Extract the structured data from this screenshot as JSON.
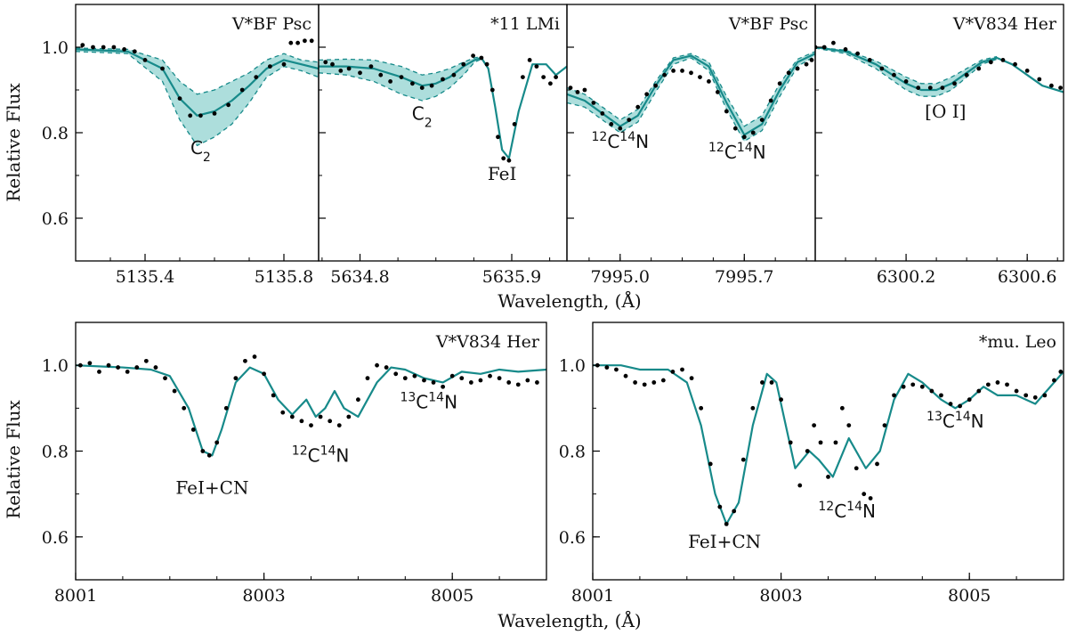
{
  "colors": {
    "model": "#178a8a",
    "band_fill": "#9fd8d6",
    "observed": "#000000"
  },
  "labels": {
    "ylabel": "Relative Flux",
    "xlabel": "Wavelength, (Å)"
  },
  "chart_data": [
    {
      "type": "line",
      "id": "p1",
      "title": "V*BF Psc",
      "xlim": [
        5135.2,
        5135.9
      ],
      "ylim": [
        0.5,
        1.1
      ],
      "xticks": [
        5135.4,
        5135.8
      ],
      "xtick_labels": [
        "5135.4",
        "5135.8"
      ],
      "yticks": [
        0.6,
        0.8,
        1.0
      ],
      "ytick_labels": [
        "0.6",
        "0.8",
        "1.0"
      ],
      "band": true,
      "model_x": [
        5135.2,
        5135.35,
        5135.45,
        5135.5,
        5135.55,
        5135.6,
        5135.65,
        5135.7,
        5135.75,
        5135.8,
        5135.85,
        5135.9
      ],
      "model_y": [
        0.995,
        0.99,
        0.95,
        0.88,
        0.84,
        0.85,
        0.875,
        0.91,
        0.95,
        0.97,
        0.96,
        0.95
      ],
      "band_upper": [
        0.998,
        0.995,
        0.97,
        0.92,
        0.89,
        0.9,
        0.92,
        0.94,
        0.97,
        0.985,
        0.97,
        0.965
      ],
      "band_lower": [
        0.99,
        0.985,
        0.92,
        0.83,
        0.77,
        0.79,
        0.82,
        0.87,
        0.93,
        0.955,
        0.945,
        0.93
      ],
      "obs_x": [
        5135.22,
        5135.25,
        5135.28,
        5135.31,
        5135.34,
        5135.37,
        5135.4,
        5135.45,
        5135.5,
        5135.53,
        5135.56,
        5135.6,
        5135.64,
        5135.68,
        5135.72,
        5135.76,
        5135.8,
        5135.82,
        5135.84,
        5135.86,
        5135.88
      ],
      "obs_y": [
        1.005,
        1.0,
        1.0,
        1.0,
        0.995,
        0.99,
        0.97,
        0.95,
        0.88,
        0.84,
        0.84,
        0.845,
        0.865,
        0.9,
        0.93,
        0.955,
        0.96,
        1.01,
        1.01,
        1.015,
        1.015
      ],
      "annotations": [
        {
          "id": "c2",
          "base": "C",
          "sub": "2",
          "sup_pre": "",
          "after": "",
          "x": 5135.56,
          "y": 0.75,
          "sans": true
        }
      ]
    },
    {
      "type": "line",
      "id": "p2",
      "title": "*11 LMi",
      "xlim": [
        5634.5,
        5636.3
      ],
      "ylim": [
        0.5,
        1.1
      ],
      "xticks": [
        5634.8,
        5635.9
      ],
      "xtick_labels": [
        "5634.8",
        "5635.9"
      ],
      "yticks": [
        0.6,
        0.8,
        1.0
      ],
      "ytick_labels": [
        "0.6",
        "0.8",
        "1.0"
      ],
      "band": true,
      "model_x": [
        5634.5,
        5634.7,
        5634.9,
        5635.1,
        5635.25,
        5635.35,
        5635.45,
        5635.55,
        5635.63,
        5635.68,
        5635.73,
        5635.78,
        5635.83,
        5635.88,
        5635.95,
        5636.05,
        5636.15,
        5636.22,
        5636.3
      ],
      "model_y": [
        0.955,
        0.955,
        0.95,
        0.93,
        0.91,
        0.915,
        0.93,
        0.955,
        0.97,
        0.975,
        0.95,
        0.86,
        0.76,
        0.74,
        0.85,
        0.96,
        0.96,
        0.935,
        0.955
      ],
      "band_upper": [
        0.97,
        0.972,
        0.97,
        0.955,
        0.935,
        0.94,
        0.95,
        0.965,
        0.975,
        0.978
      ],
      "band_lower": [
        0.94,
        0.935,
        0.92,
        0.89,
        0.875,
        0.885,
        0.905,
        0.935,
        0.965,
        0.972
      ],
      "band_n": 10,
      "obs_x": [
        5634.55,
        5634.6,
        5634.66,
        5634.72,
        5634.8,
        5634.88,
        5634.95,
        5635.02,
        5635.1,
        5635.18,
        5635.25,
        5635.32,
        5635.4,
        5635.48,
        5635.55,
        5635.62,
        5635.68,
        5635.72,
        5635.76,
        5635.8,
        5635.84,
        5635.88,
        5635.92,
        5635.98,
        5636.03,
        5636.08,
        5636.13,
        5636.18,
        5636.22
      ],
      "obs_y": [
        0.965,
        0.96,
        0.945,
        0.95,
        0.94,
        0.955,
        0.935,
        0.92,
        0.93,
        0.915,
        0.905,
        0.91,
        0.925,
        0.935,
        0.96,
        0.98,
        0.975,
        0.96,
        0.9,
        0.79,
        0.74,
        0.735,
        0.82,
        0.93,
        0.97,
        0.955,
        0.93,
        0.915,
        0.93
      ],
      "annotations": [
        {
          "id": "c2",
          "base": "C",
          "sub": "2",
          "sup_pre": "",
          "after": "",
          "x": 5635.25,
          "y": 0.83,
          "sans": true
        },
        {
          "id": "fei",
          "base": "FeI",
          "sub": "",
          "sup_pre": "",
          "after": "",
          "x": 5635.83,
          "y": 0.69,
          "sans": false
        }
      ]
    },
    {
      "type": "line",
      "id": "p3",
      "title": "V*BF Psc",
      "xlim": [
        7994.7,
        7996.1
      ],
      "ylim": [
        0.5,
        1.1
      ],
      "xticks": [
        7995.0,
        7995.7
      ],
      "xtick_labels": [
        "7995.0",
        "7995.7"
      ],
      "yticks": [
        0.6,
        0.8,
        1.0
      ],
      "ytick_labels": [
        "0.6",
        "0.8",
        "1.0"
      ],
      "band": true,
      "model_x": [
        7994.7,
        7994.8,
        7994.9,
        7995.0,
        7995.1,
        7995.2,
        7995.3,
        7995.4,
        7995.5,
        7995.6,
        7995.7,
        7995.8,
        7995.9,
        7996.0,
        7996.1
      ],
      "model_y": [
        0.89,
        0.875,
        0.845,
        0.815,
        0.84,
        0.91,
        0.97,
        0.98,
        0.955,
        0.87,
        0.795,
        0.82,
        0.9,
        0.965,
        0.985
      ],
      "band_upper": [
        0.905,
        0.89,
        0.86,
        0.83,
        0.855,
        0.92,
        0.975,
        0.985,
        0.965,
        0.885,
        0.815,
        0.84,
        0.915,
        0.972,
        0.99
      ],
      "band_lower": [
        0.87,
        0.86,
        0.83,
        0.8,
        0.825,
        0.895,
        0.96,
        0.975,
        0.945,
        0.855,
        0.78,
        0.805,
        0.885,
        0.955,
        0.98
      ],
      "obs_x": [
        7994.72,
        7994.76,
        7994.8,
        7994.85,
        7994.9,
        7994.95,
        7995.0,
        7995.05,
        7995.1,
        7995.15,
        7995.2,
        7995.25,
        7995.3,
        7995.35,
        7995.4,
        7995.45,
        7995.5,
        7995.55,
        7995.6,
        7995.65,
        7995.7,
        7995.75,
        7995.8,
        7995.85,
        7995.9,
        7995.95,
        7996.0,
        7996.05,
        7996.08
      ],
      "obs_y": [
        0.905,
        0.895,
        0.9,
        0.87,
        0.845,
        0.82,
        0.81,
        0.83,
        0.86,
        0.89,
        0.91,
        0.935,
        0.945,
        0.945,
        0.94,
        0.93,
        0.92,
        0.895,
        0.85,
        0.81,
        0.79,
        0.8,
        0.83,
        0.875,
        0.915,
        0.94,
        0.95,
        0.96,
        0.97
      ],
      "annotations": [
        {
          "id": "cn1",
          "base": "C",
          "sub": "",
          "sup_pre": "12",
          "mid_sup": "14",
          "after": "N",
          "x": 7995.0,
          "y": 0.765,
          "sans": true
        },
        {
          "id": "cn2",
          "base": "C",
          "sub": "",
          "sup_pre": "12",
          "mid_sup": "14",
          "after": "N",
          "x": 7995.66,
          "y": 0.74,
          "sans": true
        }
      ]
    },
    {
      "type": "line",
      "id": "p4",
      "title": "V*V834 Her",
      "xlim": [
        6299.9,
        6300.72
      ],
      "ylim": [
        0.5,
        1.1
      ],
      "xticks": [
        6300.2,
        6300.6
      ],
      "xtick_labels": [
        "6300.2",
        "6300.6"
      ],
      "yticks": [
        0.6,
        0.8,
        1.0
      ],
      "ytick_labels": [
        "0.6",
        "0.8",
        "1.0"
      ],
      "band": true,
      "model_x": [
        6299.9,
        6300.0,
        6300.1,
        6300.2,
        6300.25,
        6300.3,
        6300.35,
        6300.4,
        6300.45,
        6300.5,
        6300.55,
        6300.6,
        6300.65,
        6300.72
      ],
      "model_y": [
        1.0,
        0.99,
        0.96,
        0.915,
        0.9,
        0.9,
        0.915,
        0.94,
        0.965,
        0.975,
        0.96,
        0.935,
        0.91,
        0.895
      ],
      "band_upper": [
        1.0,
        0.993,
        0.968,
        0.93,
        0.915,
        0.915,
        0.93,
        0.95,
        0.97,
        0.978
      ],
      "band_lower": [
        0.998,
        0.985,
        0.95,
        0.9,
        0.885,
        0.885,
        0.9,
        0.93,
        0.96,
        0.972
      ],
      "band_n": 10,
      "obs_x": [
        6299.9,
        6299.93,
        6299.96,
        6300.0,
        6300.04,
        6300.08,
        6300.12,
        6300.16,
        6300.2,
        6300.24,
        6300.28,
        6300.32,
        6300.36,
        6300.4,
        6300.44,
        6300.48,
        6300.52,
        6300.56,
        6300.6,
        6300.64,
        6300.68,
        6300.71
      ],
      "obs_y": [
        1.0,
        1.0,
        1.01,
        0.995,
        0.985,
        0.97,
        0.95,
        0.935,
        0.92,
        0.905,
        0.905,
        0.905,
        0.915,
        0.935,
        0.95,
        0.965,
        0.97,
        0.96,
        0.945,
        0.925,
        0.91,
        0.905
      ],
      "annotations": [
        {
          "id": "oi",
          "base": "[O I]",
          "sub": "",
          "sup_pre": "",
          "after": "",
          "x": 6300.33,
          "y": 0.835,
          "sans": false
        }
      ]
    },
    {
      "type": "line",
      "id": "p5",
      "title": "V*V834 Her",
      "xlim": [
        8001,
        8006
      ],
      "ylim": [
        0.5,
        1.1
      ],
      "xticks": [
        8001,
        8003,
        8005
      ],
      "xtick_labels": [
        "8001",
        "8003",
        "8005"
      ],
      "yticks": [
        0.6,
        0.8,
        1.0
      ],
      "ytick_labels": [
        "0.6",
        "0.8",
        "1.0"
      ],
      "band": false,
      "model_x": [
        8001.0,
        8001.5,
        8001.8,
        8002.0,
        8002.2,
        8002.35,
        8002.45,
        8002.55,
        8002.7,
        8002.85,
        8003.0,
        8003.15,
        8003.3,
        8003.45,
        8003.55,
        8003.65,
        8003.75,
        8003.85,
        8004.0,
        8004.2,
        8004.35,
        8004.5,
        8004.7,
        8004.9,
        8005.1,
        8005.3,
        8005.5,
        8005.7,
        8006.0
      ],
      "model_y": [
        1.0,
        0.995,
        0.99,
        0.975,
        0.9,
        0.8,
        0.79,
        0.85,
        0.96,
        0.995,
        0.98,
        0.92,
        0.885,
        0.92,
        0.88,
        0.9,
        0.94,
        0.9,
        0.88,
        0.96,
        0.995,
        0.99,
        0.97,
        0.96,
        0.985,
        0.98,
        0.99,
        0.985,
        0.99
      ],
      "obs_x": [
        8001.05,
        8001.15,
        8001.25,
        8001.35,
        8001.45,
        8001.55,
        8001.65,
        8001.75,
        8001.85,
        8001.95,
        8002.05,
        8002.15,
        8002.25,
        8002.35,
        8002.42,
        8002.5,
        8002.6,
        8002.7,
        8002.8,
        8002.9,
        8003.0,
        8003.1,
        8003.2,
        8003.3,
        8003.4,
        8003.5,
        8003.6,
        8003.7,
        8003.8,
        8003.9,
        8004.0,
        8004.1,
        8004.2,
        8004.3,
        8004.4,
        8004.5,
        8004.6,
        8004.7,
        8004.8,
        8004.9,
        8005.0,
        8005.1,
        8005.2,
        8005.3,
        8005.4,
        8005.5,
        8005.6,
        8005.7,
        8005.8,
        8005.9
      ],
      "obs_y": [
        1.0,
        1.005,
        0.985,
        1.0,
        0.995,
        0.985,
        0.995,
        1.01,
        0.995,
        0.97,
        0.94,
        0.9,
        0.85,
        0.8,
        0.79,
        0.82,
        0.9,
        0.97,
        1.01,
        1.02,
        0.98,
        0.93,
        0.89,
        0.88,
        0.87,
        0.86,
        0.88,
        0.87,
        0.86,
        0.88,
        0.92,
        0.97,
        1.0,
        0.995,
        0.98,
        0.97,
        0.975,
        0.965,
        0.96,
        0.95,
        0.975,
        0.97,
        0.96,
        0.965,
        0.975,
        0.97,
        0.96,
        0.955,
        0.965,
        0.96
      ],
      "annotations": [
        {
          "id": "fecn",
          "base": "FeI+CN",
          "sub": "",
          "sup_pre": "",
          "after": "",
          "x": 8002.45,
          "y": 0.7,
          "sans": false
        },
        {
          "id": "cn12",
          "base": "C",
          "sub": "",
          "sup_pre": "12",
          "mid_sup": "14",
          "after": "N",
          "x": 8003.6,
          "y": 0.775,
          "sans": true
        },
        {
          "id": "cn13",
          "base": "C",
          "sub": "",
          "sup_pre": "13",
          "mid_sup": "14",
          "after": "N",
          "x": 8004.75,
          "y": 0.9,
          "sans": true
        }
      ]
    },
    {
      "type": "line",
      "id": "p6",
      "title": "*mu. Leo",
      "xlim": [
        8001,
        8006
      ],
      "ylim": [
        0.5,
        1.1
      ],
      "xticks": [
        8001,
        8003,
        8005
      ],
      "xtick_labels": [
        "8001",
        "8003",
        "8005"
      ],
      "yticks": [
        0.6,
        0.8,
        1.0
      ],
      "ytick_labels": [
        "0.6",
        "0.8",
        "1.0"
      ],
      "band": false,
      "model_x": [
        8001.0,
        8001.3,
        8001.5,
        8001.8,
        8002.0,
        8002.15,
        8002.3,
        8002.42,
        8002.55,
        8002.7,
        8002.85,
        8002.95,
        8003.05,
        8003.15,
        8003.3,
        8003.4,
        8003.55,
        8003.72,
        8003.9,
        8004.05,
        8004.2,
        8004.35,
        8004.5,
        8004.7,
        8004.85,
        8005.0,
        8005.15,
        8005.3,
        8005.5,
        8005.7,
        8006.0
      ],
      "model_y": [
        1.0,
        1.0,
        0.99,
        0.99,
        0.96,
        0.86,
        0.7,
        0.63,
        0.68,
        0.86,
        0.98,
        0.96,
        0.86,
        0.76,
        0.8,
        0.78,
        0.74,
        0.83,
        0.76,
        0.8,
        0.92,
        0.98,
        0.96,
        0.92,
        0.9,
        0.92,
        0.95,
        0.93,
        0.93,
        0.91,
        0.985
      ],
      "obs_x": [
        8001.05,
        8001.15,
        8001.25,
        8001.35,
        8001.45,
        8001.55,
        8001.65,
        8001.75,
        8001.85,
        8001.95,
        8002.05,
        8002.15,
        8002.25,
        8002.35,
        8002.42,
        8002.5,
        8002.6,
        8002.7,
        8002.8,
        8002.9,
        8003.0,
        8003.1,
        8003.2,
        8003.28,
        8003.35,
        8003.42,
        8003.5,
        8003.58,
        8003.65,
        8003.72,
        8003.8,
        8003.88,
        8003.95,
        8004.02,
        8004.1,
        8004.2,
        8004.3,
        8004.4,
        8004.5,
        8004.6,
        8004.7,
        8004.8,
        8004.9,
        8005.0,
        8005.1,
        8005.2,
        8005.3,
        8005.4,
        8005.5,
        8005.6,
        8005.7,
        8005.8,
        8005.9,
        8005.97
      ],
      "obs_y": [
        1.0,
        0.995,
        0.99,
        0.975,
        0.96,
        0.955,
        0.96,
        0.965,
        0.985,
        0.99,
        0.97,
        0.9,
        0.77,
        0.67,
        0.63,
        0.66,
        0.78,
        0.9,
        0.96,
        0.96,
        0.92,
        0.82,
        0.72,
        0.8,
        0.86,
        0.82,
        0.74,
        0.82,
        0.9,
        0.86,
        0.76,
        0.7,
        0.69,
        0.77,
        0.86,
        0.93,
        0.95,
        0.955,
        0.95,
        0.94,
        0.93,
        0.91,
        0.905,
        0.92,
        0.94,
        0.955,
        0.96,
        0.955,
        0.94,
        0.93,
        0.925,
        0.93,
        0.965,
        0.985
      ],
      "annotations": [
        {
          "id": "fecn",
          "base": "FeI+CN",
          "sub": "",
          "sup_pre": "",
          "after": "",
          "x": 8002.4,
          "y": 0.575,
          "sans": false
        },
        {
          "id": "cn12",
          "base": "C",
          "sub": "",
          "sup_pre": "12",
          "mid_sup": "14",
          "after": "N",
          "x": 8003.7,
          "y": 0.645,
          "sans": true
        },
        {
          "id": "cn13",
          "base": "C",
          "sub": "",
          "sup_pre": "13",
          "mid_sup": "14",
          "after": "N",
          "x": 8004.85,
          "y": 0.855,
          "sans": true
        }
      ]
    }
  ]
}
